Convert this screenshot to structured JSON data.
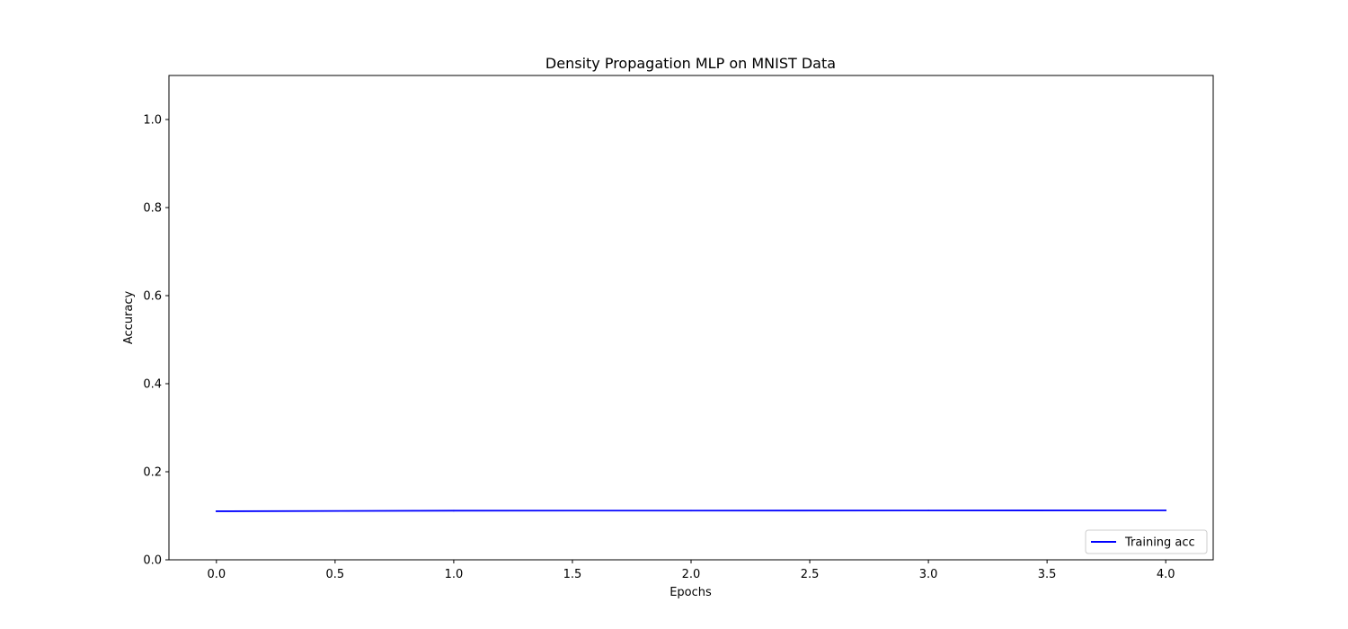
{
  "chart_data": {
    "type": "line",
    "title": "Density Propagation MLP on MNIST Data",
    "xlabel": "Epochs",
    "ylabel": "Accuracy",
    "xlim": [
      -0.2,
      4.2
    ],
    "ylim": [
      0.0,
      1.1
    ],
    "xticks": [
      "0.0",
      "0.5",
      "1.0",
      "1.5",
      "2.0",
      "2.5",
      "3.0",
      "3.5",
      "4.0"
    ],
    "yticks": [
      "0.0",
      "0.2",
      "0.4",
      "0.6",
      "0.8",
      "1.0"
    ],
    "grid": false,
    "legend_position": "lower-right",
    "series": [
      {
        "name": "Training acc",
        "color": "#0000ff",
        "x": [
          0,
          1,
          2,
          3,
          4
        ],
        "values": [
          0.1103,
          0.1116,
          0.1118,
          0.112,
          0.1123
        ]
      }
    ]
  }
}
